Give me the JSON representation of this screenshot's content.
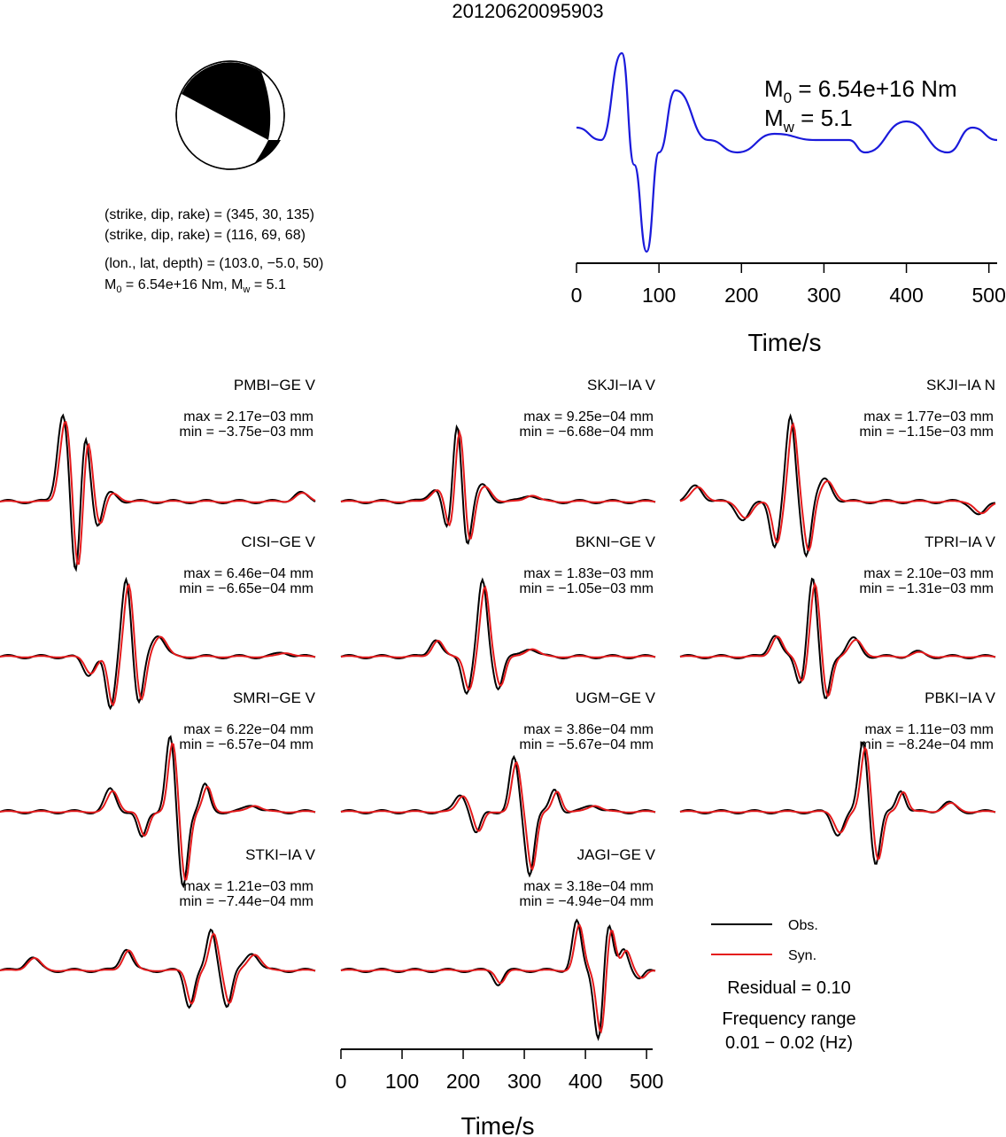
{
  "title": "20120620095903",
  "mechanism": {
    "lines": [
      "(strike, dip, rake) = (345, 30, 135)",
      "(strike, dip, rake) = (116, 69, 68)",
      "(lon., lat, depth) = (103.0, −5.0, 50)"
    ],
    "moment_line": {
      "m0_value": " = 6.54e+16 Nm, M",
      "mw_value": " = 5.1"
    }
  },
  "stf": {
    "m0_label": "M",
    "m0_sub": "0",
    "m0_value": " = 6.54e+16 Nm",
    "mw_label": "M",
    "mw_sub": "w",
    "mw_value": " = 5.1",
    "xlabel": "Time/s",
    "ticks": [
      "0",
      "100",
      "200",
      "300",
      "400",
      "500"
    ]
  },
  "legend": {
    "obs": "Obs.",
    "syn": "Syn.",
    "residual": "Residual = 0.10",
    "freq_title": "Frequency range",
    "freq_value": "0.01 − 0.02 (Hz)",
    "obs_color": "#000000",
    "syn_color": "#e41a1c"
  },
  "bottom_axis": {
    "xlabel": "Time/s",
    "ticks": [
      "0",
      "100",
      "200",
      "300",
      "400",
      "500"
    ]
  },
  "chart_data": {
    "type": "line",
    "stf_series": {
      "color": "#1a1adb",
      "x": [
        0,
        30,
        55,
        70,
        85,
        100,
        120,
        160,
        195,
        240,
        290,
        330,
        350,
        400,
        450,
        480,
        510
      ],
      "y": [
        0.4,
        0.3,
        1.0,
        0.1,
        -0.6,
        0.2,
        0.7,
        0.3,
        0.2,
        0.35,
        0.3,
        0.3,
        0.2,
        0.45,
        0.2,
        0.4,
        0.3
      ]
    },
    "xlim": [
      0,
      510
    ],
    "stations": [
      {
        "label": "PMBI−GE V",
        "max": "max = 2.17e−03 mm",
        "min": "min = −3.75e−03 mm"
      },
      {
        "label": "SKJI−IA V",
        "max": "max = 9.25e−04 mm",
        "min": "min = −6.68e−04 mm"
      },
      {
        "label": "SKJI−IA N",
        "max": "max = 1.77e−03 mm",
        "min": "min = −1.15e−03 mm"
      },
      {
        "label": "CISI−GE V",
        "max": "max = 6.46e−04 mm",
        "min": "min = −6.65e−04 mm"
      },
      {
        "label": "BKNI−GE V",
        "max": "max = 1.83e−03 mm",
        "min": "min = −1.05e−03 mm"
      },
      {
        "label": "TPRI−IA V",
        "max": "max = 2.10e−03 mm",
        "min": "min = −1.31e−03 mm"
      },
      {
        "label": "SMRI−GE V",
        "max": "max = 6.22e−04 mm",
        "min": "min = −6.57e−04 mm"
      },
      {
        "label": "UGM−GE V",
        "max": "max = 3.86e−04 mm",
        "min": "min = −5.67e−04 mm"
      },
      {
        "label": "PBKI−IA V",
        "max": "max = 1.11e−03 mm",
        "min": "min = −8.24e−04 mm"
      },
      {
        "label": "STKI−IA V",
        "max": "max = 1.21e−03 mm",
        "min": "min = −7.44e−04 mm"
      },
      {
        "label": "JAGI−GE V",
        "max": "max = 3.18e−04 mm",
        "min": "min = −4.94e−04 mm"
      }
    ]
  }
}
